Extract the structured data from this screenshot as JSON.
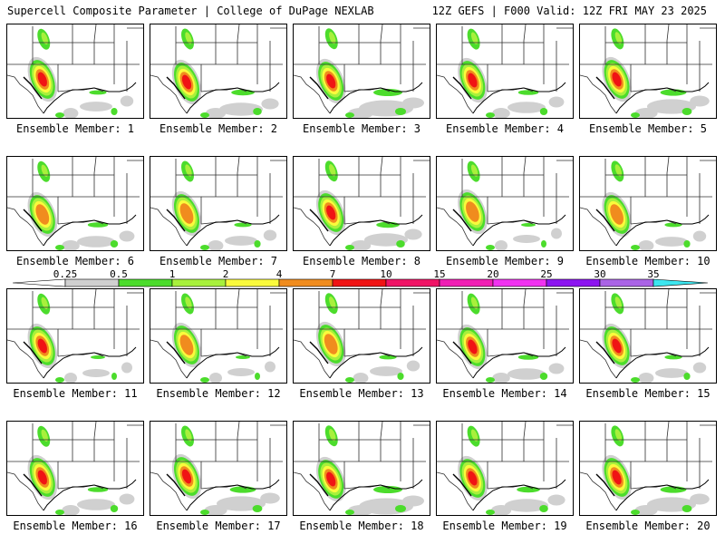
{
  "header": {
    "left": "Supercell Composite Parameter | College of DuPage NEXLAB",
    "right": "12Z GEFS | F000 Valid: 12Z FRI MAY 23 2025"
  },
  "member_label_prefix": "Ensemble Member: ",
  "members": [
    {
      "id": "1",
      "max": 7,
      "gulf": 0.6
    },
    {
      "id": "2",
      "max": 7,
      "gulf": 0.8
    },
    {
      "id": "3",
      "max": 7,
      "gulf": 1.0
    },
    {
      "id": "4",
      "max": 7,
      "gulf": 0.7
    },
    {
      "id": "5",
      "max": 7,
      "gulf": 0.9
    },
    {
      "id": "6",
      "max": 4,
      "gulf": 0.7
    },
    {
      "id": "7",
      "max": 4,
      "gulf": 0.6
    },
    {
      "id": "8",
      "max": 7,
      "gulf": 0.8
    },
    {
      "id": "9",
      "max": 4,
      "gulf": 0.5
    },
    {
      "id": "10",
      "max": 4,
      "gulf": 0.6
    },
    {
      "id": "11",
      "max": 7,
      "gulf": 0.5
    },
    {
      "id": "12",
      "max": 4,
      "gulf": 0.5
    },
    {
      "id": "13",
      "max": 4,
      "gulf": 0.6
    },
    {
      "id": "14",
      "max": 7,
      "gulf": 0.7
    },
    {
      "id": "15",
      "max": 7,
      "gulf": 0.6
    },
    {
      "id": "16",
      "max": 7,
      "gulf": 0.7
    },
    {
      "id": "17",
      "max": 7,
      "gulf": 0.9
    },
    {
      "id": "18",
      "max": 7,
      "gulf": 1.0
    },
    {
      "id": "19",
      "max": 7,
      "gulf": 0.8
    },
    {
      "id": "20",
      "max": 7,
      "gulf": 0.9
    }
  ],
  "legend": {
    "levels": [
      "0.25",
      "0.5",
      "1",
      "2",
      "4",
      "7",
      "10",
      "15",
      "20",
      "25",
      "30",
      "35"
    ],
    "colors": [
      "#d0d0d0",
      "#4cdc2c",
      "#a8f03c",
      "#fafa3c",
      "#f08c1e",
      "#f01414",
      "#f01466",
      "#f01eb4",
      "#f032f0",
      "#8c14f0",
      "#aa64e6",
      "#3ce6f0"
    ]
  }
}
